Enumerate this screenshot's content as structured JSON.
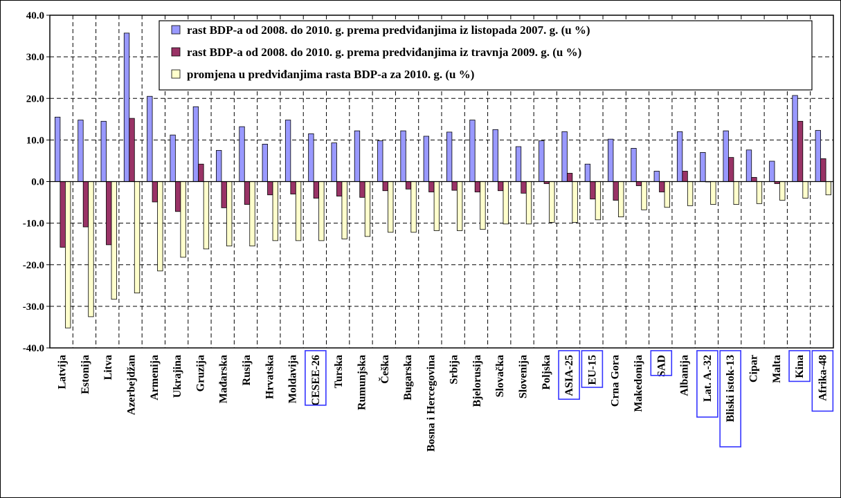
{
  "chart_data": {
    "type": "bar",
    "ylim": [
      -40,
      40
    ],
    "yticks": [
      "40.0",
      "30.0",
      "20.0",
      "10.0",
      "0.0",
      "-10.0",
      "-20.0",
      "-30.0",
      "-40.0"
    ],
    "grid": "dashed",
    "legend_placement": "top-right",
    "categories": [
      "Latvija",
      "Estonija",
      "Litva",
      "Azerbejdžan",
      "Armenija",
      "Ukrajina",
      "Gruzija",
      "Mađarska",
      "Rusija",
      "Hrvatska",
      "Moldavija",
      "CESEE-26",
      "Turska",
      "Rumunjska",
      "Češka",
      "Bugarska",
      "Bosna i Hercegovina",
      "Srbija",
      "Bjelorusija",
      "Slovačka",
      "Slovenija",
      "Poljska",
      "ASIA-25",
      "EU-15",
      "Crna Gora",
      "Makedonija",
      "SAD",
      "Albanija",
      "Lat. A.-32",
      "Bliski istok-13",
      "Cipar",
      "Malta",
      "Kina",
      "Afrika-48"
    ],
    "highlighted_categories": [
      "CESEE-26",
      "ASIA-25",
      "EU-15",
      "SAD",
      "Lat. A.-32",
      "Bliski istok-13",
      "Kina",
      "Afrika-48"
    ],
    "series": [
      {
        "name": "rast BDP-a od 2008. do 2010. g. prema predviđanjima iz listopada 2007. g. (u %)",
        "color": "#9999ff",
        "values": [
          15.5,
          14.8,
          14.5,
          35.7,
          20.5,
          11.2,
          18.0,
          7.5,
          13.2,
          9.0,
          14.8,
          11.5,
          9.3,
          12.2,
          9.8,
          12.2,
          10.9,
          11.9,
          14.8,
          12.5,
          8.4,
          9.8,
          12.0,
          4.2,
          10.2,
          8.0,
          2.5,
          12.0,
          7.0,
          12.2,
          7.6,
          4.9,
          20.7,
          12.3
        ]
      },
      {
        "name": "rast BDP-a od 2008. do 2010. g. prema predviđanjima iz travnja 2009. g. (u %)",
        "color": "#993366",
        "values": [
          -15.8,
          -10.9,
          -15.2,
          15.2,
          -4.9,
          -7.2,
          4.2,
          -6.3,
          -5.5,
          -3.2,
          -3.0,
          -4.0,
          -3.5,
          -3.8,
          -2.2,
          -1.8,
          -2.5,
          -2.1,
          -2.5,
          -2.2,
          -2.8,
          -0.5,
          2.0,
          -4.2,
          -4.5,
          -1.0,
          -2.5,
          2.5,
          0.0,
          5.8,
          1.0,
          -0.5,
          14.5,
          5.5
        ]
      },
      {
        "name": "promjena u predviđanjima rasta BDP-a za 2010. g. (u %)",
        "color": "#ffffcc",
        "values": [
          -35.2,
          -32.5,
          -28.3,
          -26.8,
          -21.5,
          -18.2,
          -16.2,
          -15.5,
          -15.5,
          -14.2,
          -14.2,
          -14.2,
          -13.8,
          -13.2,
          -12.2,
          -12.2,
          -11.8,
          -11.8,
          -11.5,
          -10.2,
          -10.2,
          -9.8,
          -9.8,
          -9.2,
          -8.5,
          -6.8,
          -6.2,
          -5.8,
          -5.5,
          -5.5,
          -5.3,
          -4.5,
          -4.0,
          -3.2
        ]
      }
    ]
  }
}
